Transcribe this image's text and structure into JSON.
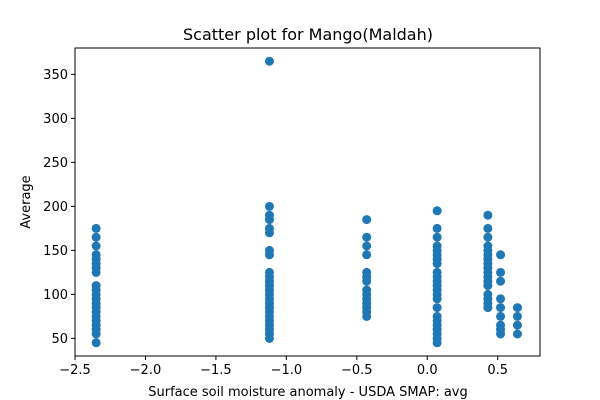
{
  "chart_data": {
    "type": "scatter",
    "title": "Scatter plot for Mango(Maldah)",
    "xlabel": "Surface soil moisture anomaly  - USDA SMAP: avg",
    "ylabel": "Average",
    "xlim": [
      -2.5,
      0.8
    ],
    "ylim": [
      30,
      380
    ],
    "xticks": [
      -2.5,
      -2.0,
      -1.5,
      -1.0,
      -0.5,
      0.0,
      0.5
    ],
    "xtick_labels": [
      "−2.5",
      "−2.0",
      "−1.5",
      "−1.0",
      "−0.5",
      "0.0",
      "0.5"
    ],
    "yticks": [
      50,
      100,
      150,
      200,
      250,
      300,
      350
    ],
    "ytick_labels": [
      "50",
      "100",
      "150",
      "200",
      "250",
      "300",
      "350"
    ],
    "color": "#1f77b4",
    "grid": false,
    "points": [
      [
        -2.35,
        45
      ],
      [
        -2.35,
        55
      ],
      [
        -2.35,
        60
      ],
      [
        -2.35,
        65
      ],
      [
        -2.35,
        70
      ],
      [
        -2.35,
        75
      ],
      [
        -2.35,
        80
      ],
      [
        -2.35,
        85
      ],
      [
        -2.35,
        90
      ],
      [
        -2.35,
        95
      ],
      [
        -2.35,
        100
      ],
      [
        -2.35,
        105
      ],
      [
        -2.35,
        110
      ],
      [
        -2.35,
        125
      ],
      [
        -2.35,
        130
      ],
      [
        -2.35,
        135
      ],
      [
        -2.35,
        140
      ],
      [
        -2.35,
        145
      ],
      [
        -2.35,
        155
      ],
      [
        -2.35,
        165
      ],
      [
        -2.35,
        175
      ],
      [
        -1.12,
        365
      ],
      [
        -1.12,
        200
      ],
      [
        -1.12,
        190
      ],
      [
        -1.12,
        185
      ],
      [
        -1.12,
        175
      ],
      [
        -1.12,
        170
      ],
      [
        -1.12,
        150
      ],
      [
        -1.12,
        145
      ],
      [
        -1.12,
        125
      ],
      [
        -1.12,
        120
      ],
      [
        -1.12,
        115
      ],
      [
        -1.12,
        110
      ],
      [
        -1.12,
        105
      ],
      [
        -1.12,
        100
      ],
      [
        -1.12,
        95
      ],
      [
        -1.12,
        90
      ],
      [
        -1.12,
        85
      ],
      [
        -1.12,
        80
      ],
      [
        -1.12,
        75
      ],
      [
        -1.12,
        70
      ],
      [
        -1.12,
        65
      ],
      [
        -1.12,
        60
      ],
      [
        -1.12,
        55
      ],
      [
        -1.12,
        50
      ],
      [
        -0.43,
        185
      ],
      [
        -0.43,
        165
      ],
      [
        -0.43,
        155
      ],
      [
        -0.43,
        145
      ],
      [
        -0.43,
        125
      ],
      [
        -0.43,
        120
      ],
      [
        -0.43,
        115
      ],
      [
        -0.43,
        105
      ],
      [
        -0.43,
        100
      ],
      [
        -0.43,
        95
      ],
      [
        -0.43,
        90
      ],
      [
        -0.43,
        85
      ],
      [
        -0.43,
        80
      ],
      [
        -0.43,
        75
      ],
      [
        0.07,
        195
      ],
      [
        0.07,
        175
      ],
      [
        0.07,
        165
      ],
      [
        0.07,
        155
      ],
      [
        0.07,
        150
      ],
      [
        0.07,
        145
      ],
      [
        0.07,
        140
      ],
      [
        0.07,
        135
      ],
      [
        0.07,
        125
      ],
      [
        0.07,
        120
      ],
      [
        0.07,
        115
      ],
      [
        0.07,
        110
      ],
      [
        0.07,
        105
      ],
      [
        0.07,
        100
      ],
      [
        0.07,
        95
      ],
      [
        0.07,
        85
      ],
      [
        0.07,
        75
      ],
      [
        0.07,
        70
      ],
      [
        0.07,
        65
      ],
      [
        0.07,
        60
      ],
      [
        0.07,
        55
      ],
      [
        0.07,
        50
      ],
      [
        0.07,
        45
      ],
      [
        0.43,
        190
      ],
      [
        0.43,
        175
      ],
      [
        0.43,
        165
      ],
      [
        0.43,
        155
      ],
      [
        0.43,
        150
      ],
      [
        0.43,
        145
      ],
      [
        0.43,
        140
      ],
      [
        0.43,
        135
      ],
      [
        0.43,
        130
      ],
      [
        0.43,
        125
      ],
      [
        0.43,
        120
      ],
      [
        0.43,
        115
      ],
      [
        0.43,
        110
      ],
      [
        0.43,
        100
      ],
      [
        0.43,
        95
      ],
      [
        0.43,
        90
      ],
      [
        0.43,
        85
      ],
      [
        0.52,
        145
      ],
      [
        0.52,
        125
      ],
      [
        0.52,
        115
      ],
      [
        0.52,
        95
      ],
      [
        0.52,
        85
      ],
      [
        0.52,
        75
      ],
      [
        0.52,
        65
      ],
      [
        0.52,
        60
      ],
      [
        0.52,
        55
      ],
      [
        0.64,
        85
      ],
      [
        0.64,
        75
      ],
      [
        0.64,
        65
      ],
      [
        0.64,
        55
      ]
    ]
  }
}
